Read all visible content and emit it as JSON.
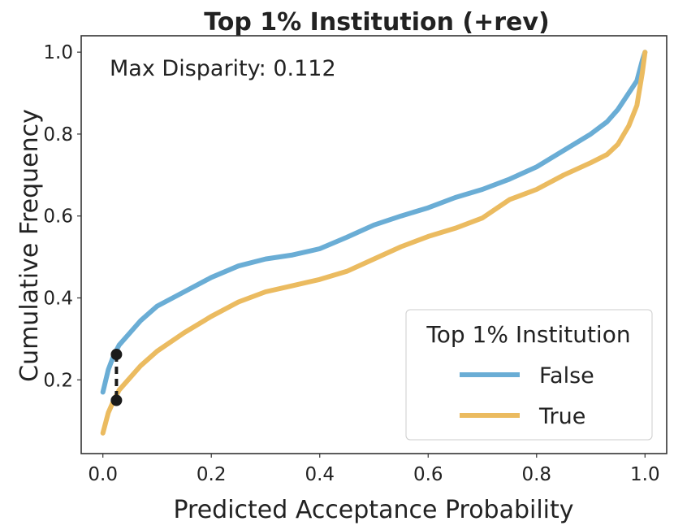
{
  "chart_data": {
    "type": "line",
    "title": "Top 1% Institution (+rev)",
    "xlabel": "Predicted Acceptance Probability",
    "ylabel": "Cumulative Frequency",
    "xlim": [
      -0.04,
      1.04
    ],
    "ylim": [
      0.02,
      1.04
    ],
    "x_ticks": [
      0.0,
      0.2,
      0.4,
      0.6,
      0.8,
      1.0
    ],
    "x_tick_labels": [
      "0.0",
      "0.2",
      "0.4",
      "0.6",
      "0.8",
      "1.0"
    ],
    "y_ticks": [
      0.2,
      0.4,
      0.6,
      0.8,
      1.0
    ],
    "y_tick_labels": [
      "0.2",
      "0.4",
      "0.6",
      "0.8",
      "1.0"
    ],
    "grid": false,
    "annotation": "Max Disparity: 0.112",
    "disparity": {
      "x": 0.025,
      "y_low": 0.15,
      "y_high": 0.262
    },
    "legend": {
      "title": "Top 1% Institution",
      "placement": "lower-right"
    },
    "series": [
      {
        "name": "False",
        "color": "#6aadd5",
        "x": [
          0.0,
          0.01,
          0.02,
          0.03,
          0.05,
          0.07,
          0.1,
          0.15,
          0.2,
          0.25,
          0.3,
          0.35,
          0.4,
          0.45,
          0.5,
          0.55,
          0.6,
          0.65,
          0.7,
          0.75,
          0.8,
          0.85,
          0.9,
          0.93,
          0.95,
          0.97,
          0.985,
          0.995,
          1.0
        ],
        "y": [
          0.17,
          0.225,
          0.26,
          0.285,
          0.315,
          0.345,
          0.38,
          0.415,
          0.45,
          0.478,
          0.495,
          0.505,
          0.52,
          0.548,
          0.578,
          0.6,
          0.62,
          0.645,
          0.665,
          0.69,
          0.72,
          0.76,
          0.8,
          0.83,
          0.86,
          0.9,
          0.93,
          0.98,
          1.0
        ]
      },
      {
        "name": "True",
        "color": "#ebbb60",
        "x": [
          0.0,
          0.01,
          0.02,
          0.03,
          0.05,
          0.07,
          0.1,
          0.15,
          0.2,
          0.25,
          0.3,
          0.35,
          0.4,
          0.45,
          0.5,
          0.55,
          0.6,
          0.65,
          0.7,
          0.75,
          0.8,
          0.85,
          0.9,
          0.93,
          0.95,
          0.97,
          0.985,
          0.995,
          1.0
        ],
        "y": [
          0.07,
          0.12,
          0.15,
          0.175,
          0.205,
          0.235,
          0.27,
          0.315,
          0.355,
          0.39,
          0.415,
          0.43,
          0.445,
          0.465,
          0.495,
          0.525,
          0.55,
          0.57,
          0.595,
          0.64,
          0.665,
          0.7,
          0.73,
          0.75,
          0.775,
          0.82,
          0.87,
          0.95,
          1.0
        ]
      }
    ]
  }
}
